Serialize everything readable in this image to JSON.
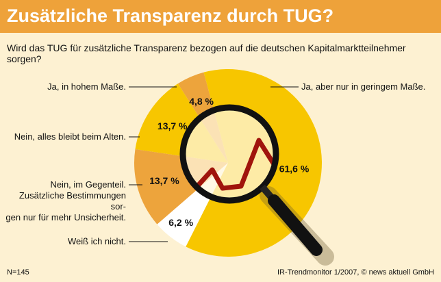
{
  "chart_data": {
    "type": "pie",
    "title": "Zusätzliche Transparenz durch TUG?",
    "subtitle": "Wird das TUG für zusätzliche Transparenz bezogen auf die deutschen Kapitalmarktteilnehmer sorgen?",
    "categories": [
      "Ja, in hohem Maße.",
      "Nein, alles bleibt beim Alten.",
      "Nein, im Gegenteil.\nZusätzliche Bestimmungen sor-\ngen nur für mehr Unsicherheit.",
      "Weiß ich nicht.",
      "Ja, aber nur in geringem Maße."
    ],
    "values": [
      4.8,
      13.7,
      13.7,
      6.2,
      61.6
    ],
    "value_labels": [
      "4,8 %",
      "13,7 %",
      "13,7 %",
      "6,2 %",
      "61,6 %"
    ],
    "colors": [
      "#eda43c",
      "#f7c600",
      "#eda43c",
      "#ffffff",
      "#f7c600"
    ],
    "note": "N=145",
    "source": "IR-Trendmonitor 1/2007, © news aktuell GmbH"
  }
}
